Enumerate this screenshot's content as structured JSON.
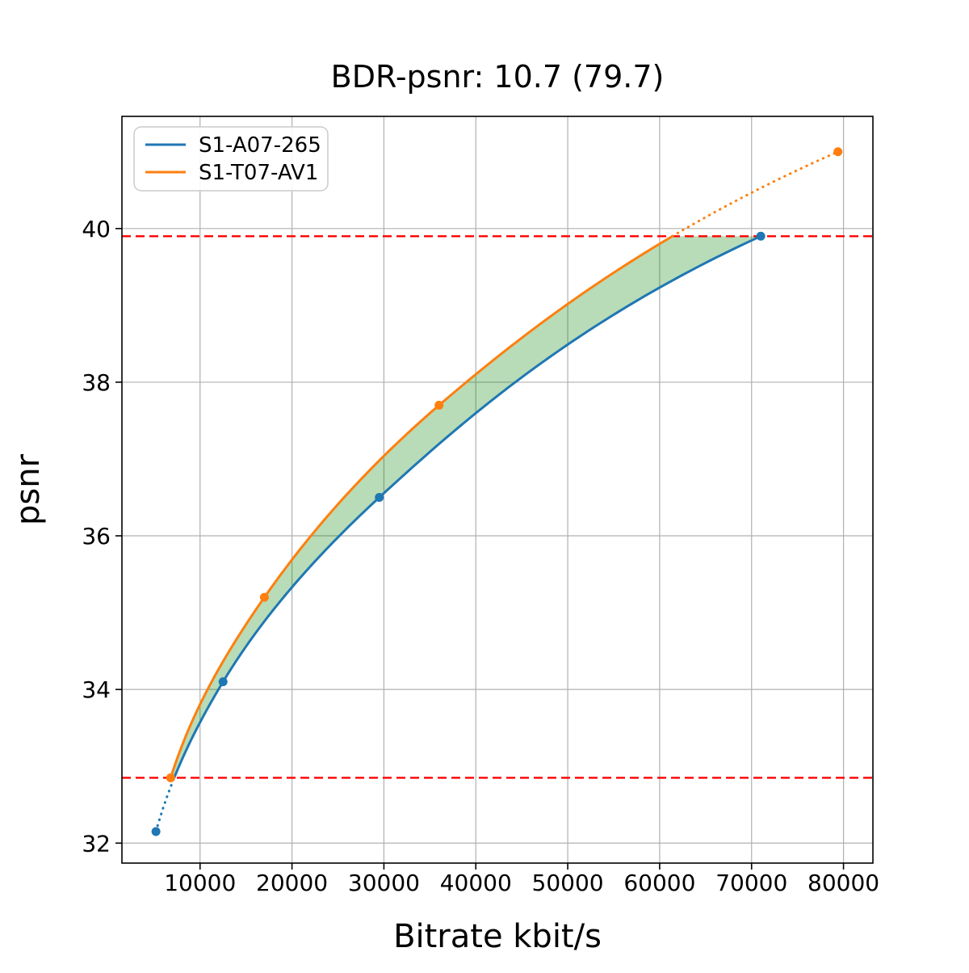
{
  "chart_data": {
    "type": "line",
    "title": "BDR-psnr: 10.7 (79.7)",
    "xlabel": "Bitrate kbit/s",
    "ylabel": "psnr",
    "xlim": [
      1500,
      83200
    ],
    "ylim": [
      31.74,
      41.46
    ],
    "xticks": [
      10000,
      20000,
      30000,
      40000,
      50000,
      60000,
      70000,
      80000
    ],
    "yticks": [
      32,
      34,
      36,
      38,
      40
    ],
    "grid": true,
    "grid_color": "#b0b0b0",
    "legend_position": "upper left",
    "series": [
      {
        "name": "S1-A07-265",
        "color": "#1f77b4",
        "x": [
          5200,
          12500,
          29500,
          71000
        ],
        "y": [
          32.15,
          34.1,
          36.5,
          39.9
        ],
        "dotted_segment": "below_lower_reference"
      },
      {
        "name": "S1-T07-AV1",
        "color": "#ff7f0e",
        "x": [
          6800,
          17000,
          36000,
          79400
        ],
        "y": [
          32.85,
          35.2,
          37.7,
          41.0
        ],
        "dotted_segment": "above_upper_reference"
      }
    ],
    "reference_lines": [
      {
        "y": 39.9,
        "color": "#ff0000",
        "style": "dashed"
      },
      {
        "y": 32.85,
        "color": "#ff0000",
        "style": "dashed"
      }
    ],
    "shaded_region": {
      "between": [
        "S1-T07-AV1",
        "S1-A07-265"
      ],
      "color": "#008000",
      "opacity": 0.28
    },
    "legend": {
      "entries": [
        {
          "label": "S1-A07-265",
          "color": "#1f77b4"
        },
        {
          "label": "S1-T07-AV1",
          "color": "#ff7f0e"
        }
      ]
    }
  }
}
